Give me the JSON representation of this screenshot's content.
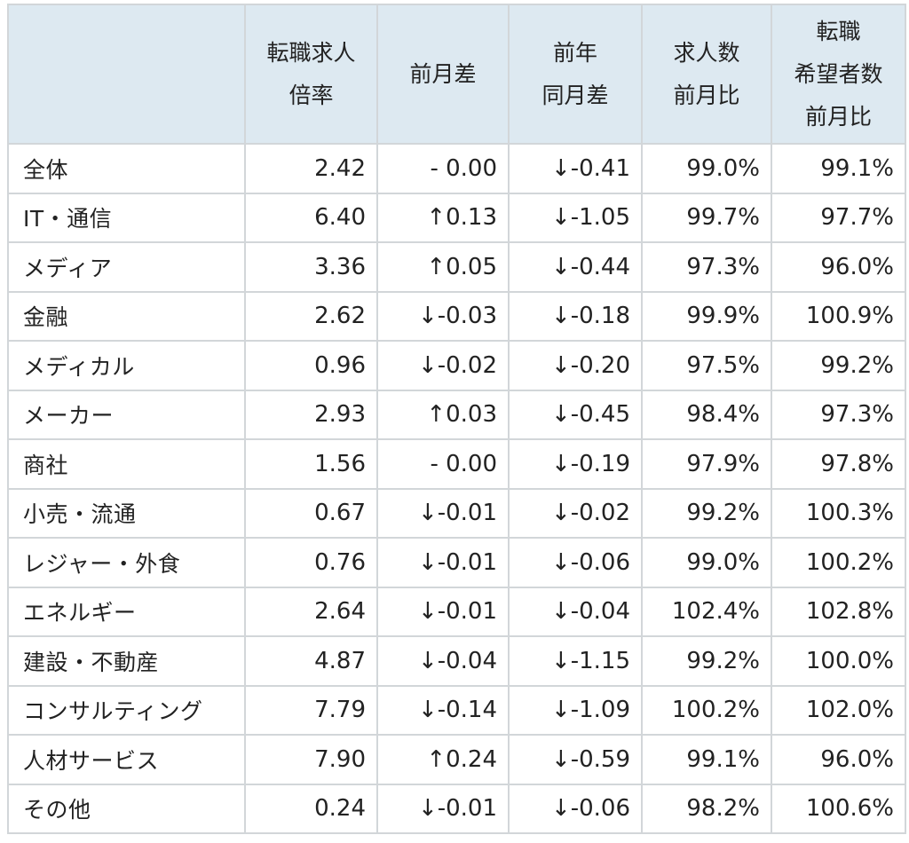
{
  "headers": [
    {
      "lines": [
        ""
      ]
    },
    {
      "lines": [
        "転職求人",
        "倍率"
      ]
    },
    {
      "lines": [
        "前月差"
      ]
    },
    {
      "lines": [
        "前年",
        "同月差"
      ]
    },
    {
      "lines": [
        "求人数",
        "前月比"
      ]
    },
    {
      "lines": [
        "転職",
        "希望者数",
        "前月比"
      ]
    }
  ],
  "rows": [
    {
      "category": "全体",
      "ratio": "2.42",
      "mom": "- 0.00",
      "yoy": "↓-0.41",
      "jobs": "99.0%",
      "seekers": "99.1%"
    },
    {
      "category": "IT・通信",
      "ratio": "6.40",
      "mom": "↑0.13",
      "yoy": "↓-1.05",
      "jobs": "99.7%",
      "seekers": "97.7%"
    },
    {
      "category": "メディア",
      "ratio": "3.36",
      "mom": "↑0.05",
      "yoy": "↓-0.44",
      "jobs": "97.3%",
      "seekers": "96.0%"
    },
    {
      "category": "金融",
      "ratio": "2.62",
      "mom": "↓-0.03",
      "yoy": "↓-0.18",
      "jobs": "99.9%",
      "seekers": "100.9%"
    },
    {
      "category": "メディカル",
      "ratio": "0.96",
      "mom": "↓-0.02",
      "yoy": "↓-0.20",
      "jobs": "97.5%",
      "seekers": "99.2%"
    },
    {
      "category": "メーカー",
      "ratio": "2.93",
      "mom": "↑0.03",
      "yoy": "↓-0.45",
      "jobs": "98.4%",
      "seekers": "97.3%"
    },
    {
      "category": "商社",
      "ratio": "1.56",
      "mom": "- 0.00",
      "yoy": "↓-0.19",
      "jobs": "97.9%",
      "seekers": "97.8%"
    },
    {
      "category": "小売・流通",
      "ratio": "0.67",
      "mom": "↓-0.01",
      "yoy": "↓-0.02",
      "jobs": "99.2%",
      "seekers": "100.3%"
    },
    {
      "category": "レジャー・外食",
      "ratio": "0.76",
      "mom": "↓-0.01",
      "yoy": "↓-0.06",
      "jobs": "99.0%",
      "seekers": "100.2%"
    },
    {
      "category": "エネルギー",
      "ratio": "2.64",
      "mom": "↓-0.01",
      "yoy": "↓-0.04",
      "jobs": "102.4%",
      "seekers": "102.8%"
    },
    {
      "category": "建設・不動産",
      "ratio": "4.87",
      "mom": "↓-0.04",
      "yoy": "↓-1.15",
      "jobs": "99.2%",
      "seekers": "100.0%"
    },
    {
      "category": "コンサルティング",
      "ratio": "7.79",
      "mom": "↓-0.14",
      "yoy": "↓-1.09",
      "jobs": "100.2%",
      "seekers": "102.0%"
    },
    {
      "category": "人材サービス",
      "ratio": "7.90",
      "mom": "↑0.24",
      "yoy": "↓-0.59",
      "jobs": "99.1%",
      "seekers": "96.0%"
    },
    {
      "category": "その他",
      "ratio": "0.24",
      "mom": "↓-0.01",
      "yoy": "↓-0.06",
      "jobs": "98.2%",
      "seekers": "100.6%"
    }
  ]
}
